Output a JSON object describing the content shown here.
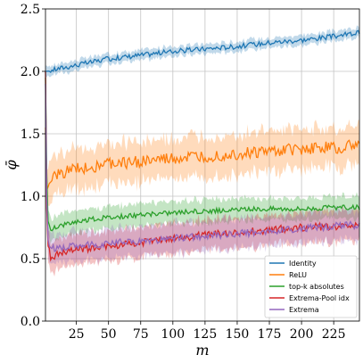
{
  "chart_data": {
    "type": "line",
    "xlabel": "m",
    "ylabel": "φ̄",
    "xlim": [
      1,
      245
    ],
    "ylim": [
      0.0,
      2.5
    ],
    "x_ticks": [
      25,
      50,
      75,
      100,
      125,
      150,
      175,
      200,
      225
    ],
    "x_tick_labels": [
      "25",
      "50",
      "75",
      "100",
      "125",
      "150",
      "175",
      "200",
      "225"
    ],
    "y_ticks": [
      0.0,
      0.5,
      1.0,
      1.5,
      2.0,
      2.5
    ],
    "y_tick_labels": [
      "0.0",
      "0.5",
      "1.0",
      "1.5",
      "2.0",
      "2.5"
    ],
    "grid": true,
    "legend_position": "bottom-right",
    "series": [
      {
        "name": "Identity",
        "color": "#1f77b4",
        "x": [
          1,
          2,
          10,
          25,
          50,
          75,
          100,
          125,
          150,
          175,
          200,
          225,
          245
        ],
        "y": [
          2.0,
          2.0,
          2.02,
          2.05,
          2.1,
          2.13,
          2.16,
          2.18,
          2.2,
          2.23,
          2.25,
          2.28,
          2.31
        ],
        "band": 0.04,
        "noise": 0.02
      },
      {
        "name": "ReLU",
        "color": "#ff7f0e",
        "x": [
          1,
          2,
          5,
          10,
          25,
          50,
          75,
          100,
          125,
          150,
          175,
          200,
          225,
          245
        ],
        "y": [
          1.55,
          1.05,
          1.12,
          1.17,
          1.22,
          1.26,
          1.28,
          1.3,
          1.32,
          1.34,
          1.36,
          1.38,
          1.39,
          1.41
        ],
        "band": 0.16,
        "noise": 0.05
      },
      {
        "name": "top-k absolutes",
        "color": "#2ca02c",
        "x": [
          1,
          2,
          3,
          5,
          10,
          25,
          50,
          75,
          100,
          125,
          150,
          175,
          200,
          225,
          245
        ],
        "y": [
          1.95,
          1.2,
          0.8,
          0.72,
          0.76,
          0.8,
          0.83,
          0.85,
          0.87,
          0.88,
          0.89,
          0.9,
          0.9,
          0.91,
          0.91
        ],
        "band": 0.09,
        "noise": 0.02
      },
      {
        "name": "Extrema-Pool idx",
        "color": "#d62728",
        "x": [
          1,
          2,
          3,
          5,
          10,
          25,
          50,
          75,
          100,
          125,
          150,
          175,
          200,
          225,
          245
        ],
        "y": [
          2.0,
          0.9,
          0.6,
          0.52,
          0.53,
          0.57,
          0.6,
          0.63,
          0.66,
          0.69,
          0.71,
          0.73,
          0.75,
          0.76,
          0.77
        ],
        "band": 0.12,
        "noise": 0.03
      },
      {
        "name": "Extrema",
        "color": "#9467bd",
        "x": [
          1,
          2,
          3,
          5,
          10,
          25,
          50,
          75,
          100,
          125,
          150,
          175,
          200,
          225,
          245
        ],
        "y": [
          1.9,
          1.0,
          0.65,
          0.6,
          0.58,
          0.6,
          0.62,
          0.64,
          0.66,
          0.68,
          0.7,
          0.72,
          0.74,
          0.76,
          0.77
        ],
        "band": 0.12,
        "noise": 0.03
      }
    ]
  }
}
